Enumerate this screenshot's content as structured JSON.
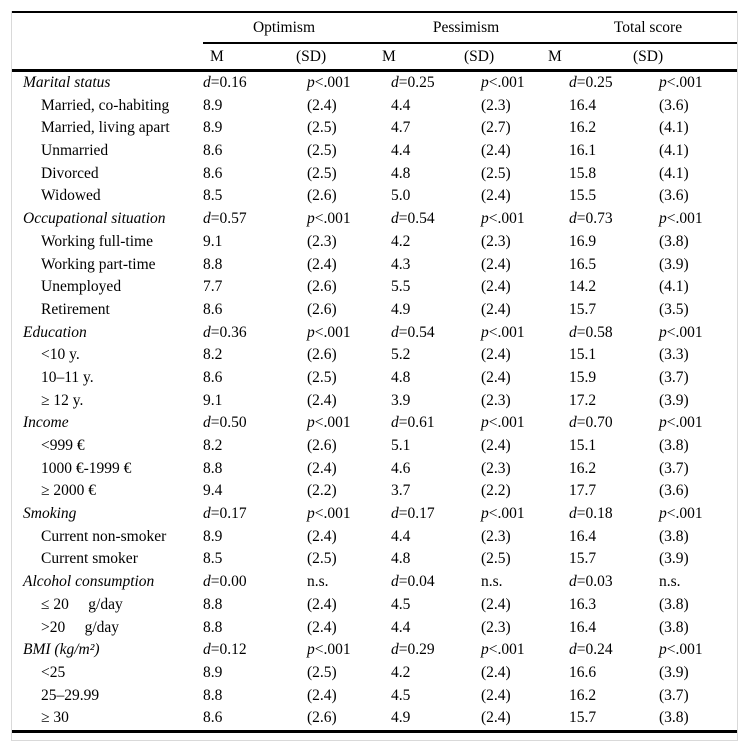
{
  "table": {
    "column_groups": [
      {
        "label": "Optimism"
      },
      {
        "label": "Pessimism"
      },
      {
        "label": "Total score"
      }
    ],
    "sub_headers": [
      "M",
      "(SD)",
      "M",
      "(SD)",
      "M",
      "(SD)"
    ],
    "rows": [
      {
        "type": "group",
        "label": "Marital status",
        "cells": [
          "d=0.16",
          "p<.001",
          "d=0.25",
          "p<.001",
          "d=0.25",
          "p<.001"
        ]
      },
      {
        "type": "item",
        "label": "Married, co-habiting",
        "cells": [
          "8.9",
          "(2.4)",
          "4.4",
          "(2.3)",
          "16.4",
          "(3.6)"
        ]
      },
      {
        "type": "item",
        "label": "Married, living apart",
        "cells": [
          "8.9",
          "(2.5)",
          "4.7",
          "(2.7)",
          "16.2",
          "(4.1)"
        ]
      },
      {
        "type": "item",
        "label": "Unmarried",
        "cells": [
          "8.6",
          "(2.5)",
          "4.4",
          "(2.4)",
          "16.1",
          "(4.1)"
        ]
      },
      {
        "type": "item",
        "label": "Divorced",
        "cells": [
          "8.6",
          "(2.5)",
          "4.8",
          "(2.5)",
          "15.8",
          "(4.1)"
        ]
      },
      {
        "type": "item",
        "label": "Widowed",
        "cells": [
          "8.5",
          "(2.6)",
          "5.0",
          "(2.4)",
          "15.5",
          "(3.6)"
        ]
      },
      {
        "type": "group",
        "label": "Occupational situation",
        "cells": [
          "d=0.57",
          "p<.001",
          "d=0.54",
          "p<.001",
          "d=0.73",
          "p<.001"
        ]
      },
      {
        "type": "item",
        "label": "Working full-time",
        "cells": [
          "9.1",
          "(2.3)",
          "4.2",
          "(2.3)",
          "16.9",
          "(3.8)"
        ]
      },
      {
        "type": "item",
        "label": "Working part-time",
        "cells": [
          "8.8",
          "(2.4)",
          "4.3",
          "(2.4)",
          "16.5",
          "(3.9)"
        ]
      },
      {
        "type": "item",
        "label": "Unemployed",
        "cells": [
          "7.7",
          "(2.6)",
          "5.5",
          "(2.4)",
          "14.2",
          "(4.1)"
        ]
      },
      {
        "type": "item",
        "label": "Retirement",
        "cells": [
          "8.6",
          "(2.6)",
          "4.9",
          "(2.4)",
          "15.7",
          "(3.5)"
        ]
      },
      {
        "type": "group",
        "label": "Education",
        "cells": [
          "d=0.36",
          "p<.001",
          "d=0.54",
          "p<.001",
          "d=0.58",
          "p<.001"
        ]
      },
      {
        "type": "item",
        "label": "<10 y.",
        "cells": [
          "8.2",
          "(2.6)",
          "5.2",
          "(2.4)",
          "15.1",
          "(3.3)"
        ]
      },
      {
        "type": "item",
        "label": "10–11 y.",
        "cells": [
          "8.6",
          "(2.5)",
          "4.8",
          "(2.4)",
          "15.9",
          "(3.7)"
        ]
      },
      {
        "type": "item",
        "label": "≥ 12 y.",
        "cells": [
          "9.1",
          "(2.4)",
          "3.9",
          "(2.3)",
          "17.2",
          "(3.9)"
        ]
      },
      {
        "type": "group",
        "label": "Income",
        "cells": [
          "d=0.50",
          "p<.001",
          "d=0.61",
          "p<.001",
          "d=0.70",
          "p<.001"
        ]
      },
      {
        "type": "item",
        "label": "<999 €",
        "cells": [
          "8.2",
          "(2.6)",
          "5.1",
          "(2.4)",
          "15.1",
          "(3.8)"
        ]
      },
      {
        "type": "item",
        "label": "1000 €-1999 €",
        "cells": [
          "8.8",
          "(2.4)",
          "4.6",
          "(2.3)",
          "16.2",
          "(3.7)"
        ]
      },
      {
        "type": "item",
        "label": "≥ 2000 €",
        "cells": [
          "9.4",
          "(2.2)",
          "3.7",
          "(2.2)",
          "17.7",
          "(3.6)"
        ]
      },
      {
        "type": "group",
        "label": "Smoking",
        "cells": [
          "d=0.17",
          "p<.001",
          "d=0.17",
          "p<.001",
          "d=0.18",
          "p<.001"
        ]
      },
      {
        "type": "item",
        "label": "Current non-smoker",
        "cells": [
          "8.9",
          "(2.4)",
          "4.4",
          "(2.3)",
          "16.4",
          "(3.8)"
        ]
      },
      {
        "type": "item",
        "label": "Current smoker",
        "cells": [
          "8.5",
          "(2.5)",
          "4.8",
          "(2.5)",
          "15.7",
          "(3.9)"
        ]
      },
      {
        "type": "group",
        "label": "Alcohol consumption",
        "cells": [
          "d=0.00",
          "n.s.",
          "d=0.04",
          "n.s.",
          "d=0.03",
          "n.s."
        ]
      },
      {
        "type": "item",
        "label": "≤ 20     g/day",
        "cells": [
          "8.8",
          "(2.4)",
          "4.5",
          "(2.4)",
          "16.3",
          "(3.8)"
        ]
      },
      {
        "type": "item",
        "label": ">20     g/day",
        "cells": [
          "8.8",
          "(2.4)",
          "4.4",
          "(2.3)",
          "16.4",
          "(3.8)"
        ]
      },
      {
        "type": "group",
        "label": "BMI (kg/m²)",
        "cells": [
          "d=0.12",
          "p<.001",
          "d=0.29",
          "p<.001",
          "d=0.24",
          "p<.001"
        ]
      },
      {
        "type": "item",
        "label": "<25",
        "cells": [
          "8.9",
          "(2.5)",
          "4.2",
          "(2.4)",
          "16.6",
          "(3.9)"
        ]
      },
      {
        "type": "item",
        "label": "25–29.99",
        "cells": [
          "8.8",
          "(2.4)",
          "4.5",
          "(2.4)",
          "16.2",
          "(3.7)"
        ]
      },
      {
        "type": "item",
        "label": "≥ 30",
        "cells": [
          "8.6",
          "(2.6)",
          "4.9",
          "(2.4)",
          "15.7",
          "(3.8)"
        ]
      }
    ]
  }
}
